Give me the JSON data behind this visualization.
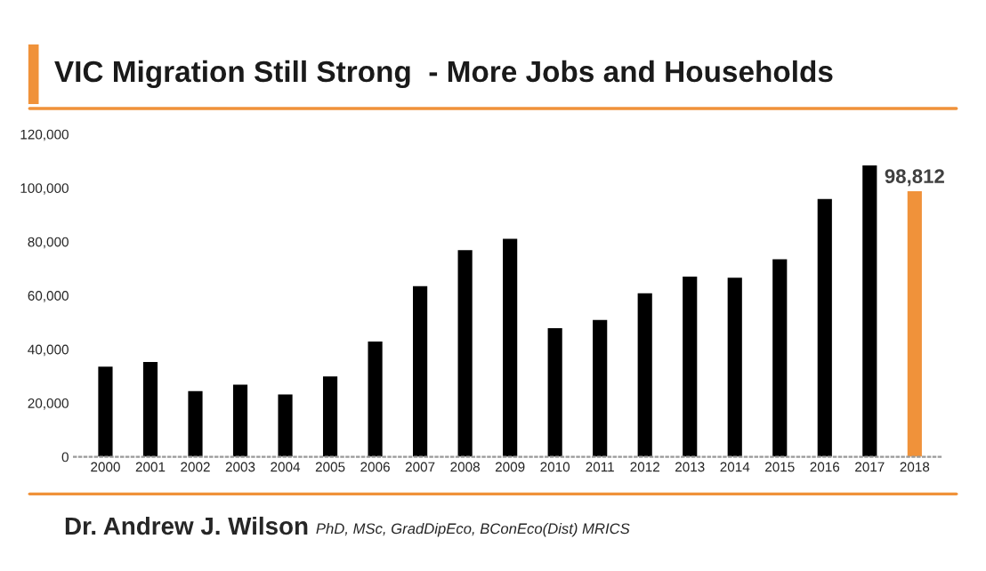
{
  "chart_data": {
    "type": "bar",
    "title": "VIC Migration Still Strong  - More Jobs and Households",
    "categories": [
      "2000",
      "2001",
      "2002",
      "2003",
      "2004",
      "2005",
      "2006",
      "2007",
      "2008",
      "2009",
      "2010",
      "2011",
      "2012",
      "2013",
      "2014",
      "2015",
      "2016",
      "2017",
      "2018"
    ],
    "values": [
      33500,
      35300,
      24400,
      26800,
      23200,
      29900,
      42900,
      63500,
      76900,
      81100,
      47800,
      50900,
      60800,
      67000,
      66600,
      73500,
      95900,
      108400,
      98812
    ],
    "colors": [
      "#000000",
      "#000000",
      "#000000",
      "#000000",
      "#000000",
      "#000000",
      "#000000",
      "#000000",
      "#000000",
      "#000000",
      "#000000",
      "#000000",
      "#000000",
      "#000000",
      "#000000",
      "#000000",
      "#000000",
      "#000000",
      "#f0923a"
    ],
    "value_labels": [
      null,
      null,
      null,
      null,
      null,
      null,
      null,
      null,
      null,
      null,
      null,
      null,
      null,
      null,
      null,
      null,
      null,
      null,
      "98,812"
    ],
    "ylim": [
      0,
      120000
    ],
    "yticks": [
      0,
      {
        "value": 20000,
        "label": "20,000"
      },
      {
        "value": 40000,
        "label": "40,000"
      },
      {
        "value": 60000,
        "label": "60,000"
      },
      {
        "value": 80000,
        "label": "80,000"
      },
      {
        "value": 100000,
        "label": "100,000"
      },
      {
        "value": 120000,
        "label": "120,000"
      }
    ],
    "grid": false,
    "annotations": [
      "Dr. Andrew J. Wilson",
      "PhD, MSc, GradDipEco, BConEco(Dist) MRICS"
    ]
  }
}
